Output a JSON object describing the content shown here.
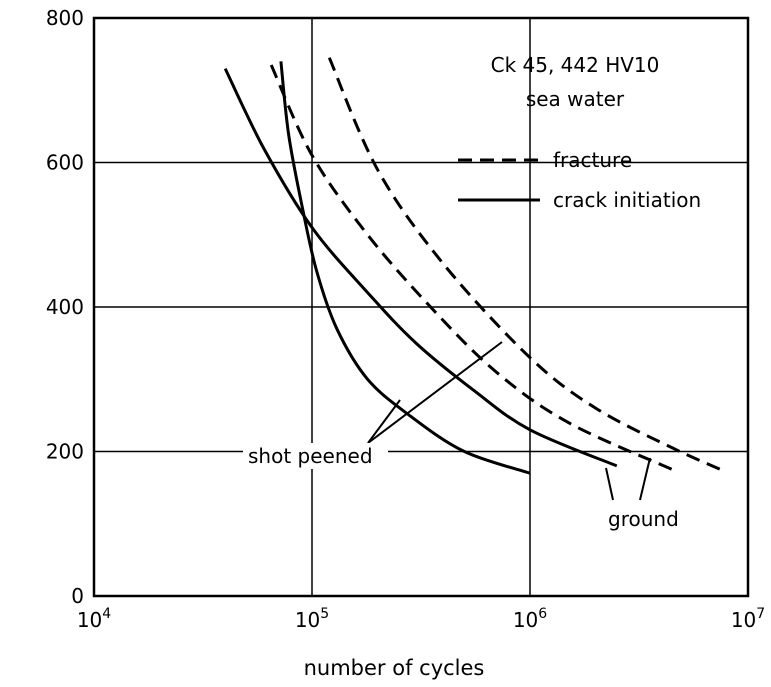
{
  "chart_data": {
    "type": "line",
    "title": "",
    "xlabel": "number of cycles",
    "ylabel": "",
    "x_scale": "log",
    "xlim": [
      10000,
      10000000
    ],
    "ylim": [
      0,
      800
    ],
    "x_ticks": [
      10000,
      100000,
      1000000,
      10000000
    ],
    "x_tick_labels": [
      {
        "base": "10",
        "exp": "4"
      },
      {
        "base": "10",
        "exp": "5"
      },
      {
        "base": "10",
        "exp": "6"
      },
      {
        "base": "10",
        "exp": "7"
      }
    ],
    "y_ticks": [
      0,
      200,
      400,
      600,
      800
    ],
    "y_tick_labels": [
      "0",
      "200",
      "400",
      "600",
      "800"
    ],
    "grid": true,
    "annotations": {
      "material": "Ck 45,  442 HV10",
      "medium": "sea water",
      "shot_peened": "shot peened",
      "ground": "ground"
    },
    "legend": {
      "placement": "top-right",
      "entries": [
        {
          "label": "fracture",
          "style": "dashed"
        },
        {
          "label": "crack initiation",
          "style": "solid"
        }
      ]
    },
    "series": [
      {
        "style": "solid",
        "points": [
          [
            72000,
            740
          ],
          [
            78000,
            640
          ],
          [
            90000,
            540
          ],
          [
            105000,
            450
          ],
          [
            130000,
            370
          ],
          [
            180000,
            300
          ],
          [
            280000,
            250
          ],
          [
            500000,
            200
          ],
          [
            1000000,
            170
          ]
        ]
      },
      {
        "style": "solid",
        "points": [
          [
            40000,
            730
          ],
          [
            60000,
            620
          ],
          [
            100000,
            510
          ],
          [
            180000,
            420
          ],
          [
            300000,
            350
          ],
          [
            550000,
            285
          ],
          [
            1000000,
            230
          ],
          [
            2500000,
            180
          ]
        ]
      },
      {
        "style": "dashed",
        "points": [
          [
            65000,
            735
          ],
          [
            100000,
            610
          ],
          [
            180000,
            500
          ],
          [
            350000,
            400
          ],
          [
            700000,
            310
          ],
          [
            1500000,
            240
          ],
          [
            4500000,
            175
          ]
        ]
      },
      {
        "style": "dashed",
        "points": [
          [
            120000,
            745
          ],
          [
            200000,
            590
          ],
          [
            400000,
            460
          ],
          [
            1000000,
            330
          ],
          [
            2000000,
            260
          ],
          [
            4500000,
            205
          ],
          [
            7500000,
            175
          ]
        ]
      }
    ]
  }
}
